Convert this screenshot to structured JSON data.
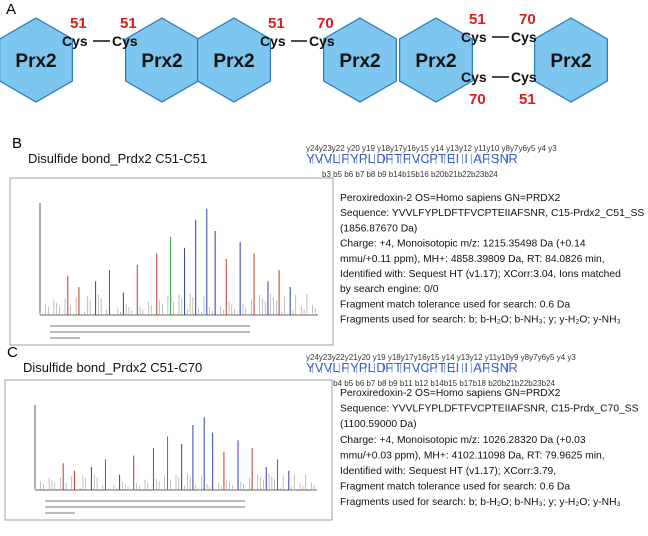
{
  "panel_a": {
    "label": "A",
    "diagrams": [
      {
        "proteins": [
          "Prx2",
          "Prx2"
        ],
        "bonds": [
          {
            "left": {
              "residue": "Cys",
              "site": 51
            },
            "right": {
              "residue": "Cys",
              "site": 51
            }
          }
        ]
      },
      {
        "proteins": [
          "Prx2",
          "Prx2"
        ],
        "bonds": [
          {
            "left": {
              "residue": "Cys",
              "site": 51
            },
            "right": {
              "residue": "Cys",
              "site": 70
            }
          }
        ]
      },
      {
        "proteins": [
          "Prx2",
          "Prx2"
        ],
        "bonds": [
          {
            "left": {
              "residue": "Cys",
              "site": 51
            },
            "right": {
              "residue": "Cys",
              "site": 70
            }
          },
          {
            "left": {
              "residue": "Cys",
              "site": 70
            },
            "right": {
              "residue": "Cys",
              "site": 51
            }
          }
        ]
      }
    ]
  },
  "panels": [
    {
      "label": "B",
      "title": "Disulfide bond_Prdx2 C51-C51",
      "sequence": [
        "Y",
        "V",
        "V",
        "L",
        "F",
        "Y",
        "P",
        "L",
        "D",
        "F",
        "T",
        "F",
        "V",
        "C",
        "P",
        "T",
        "E",
        "I",
        "I",
        "A",
        "F",
        "S",
        "N",
        "R"
      ],
      "highlight": {
        "index": 13,
        "color": "#d9772b"
      },
      "ions_top": "y24y23y22  y20 y19 y18y17y16y15 y14 y13y12 y11y10  y8y7y6y5  y4  y3",
      "ions_bottom": "b3     b5  b6  b7  b8  b9             b14b15b16        b20b21b22b23b24",
      "details": [
        "Peroxiredoxin-2 OS=Homo sapiens GN=PRDX2",
        "Sequence: YVVLFYPLDFTFVCPTEIIAFSNR, C15-Prdx2_C51_SS",
        "(1856.87670 Da)",
        "Charge: +4,   Monoisotopic m/z: 1215.35498 Da (+0.14",
        "mmu/+0.11 ppm),   MH+: 4858.39809 Da,   RT: 84.0826 min,",
        "Identified with: Sequest HT (v1.17); XCorr:3.04, Ions matched",
        "by search engine: 0/0",
        "Fragment match tolerance used for search: 0.6 Da",
        "Fragments used for search: b; b-H₂O; b-NH₃; y; y-H₂O; y-NH₃"
      ]
    },
    {
      "label": "C",
      "title": "Disulfide bond_Prdx2 C51-C70",
      "sequence": [
        "Y",
        "V",
        "V",
        "L",
        "F",
        "Y",
        "P",
        "L",
        "D",
        "F",
        "T",
        "F",
        "V",
        "C",
        "P",
        "T",
        "E",
        "I",
        "I",
        "A",
        "F",
        "S",
        "N",
        "R"
      ],
      "highlight": {
        "index": 13,
        "color": "#d9772b"
      },
      "ions_top": "y24y23y22y21y20 y19 y18y17y16y15 y14 y13y12 y11y10y9 y8y7y6y5  y4  y3",
      "ions_bottom": "b3 b4 b5 b6 b7 b8 b9     b11 b12    b14b15      b17b18      b20b21b22b23b24",
      "details": [
        "Peroxiredoxin-2 OS=Homo sapiens GN=PRDX2",
        "Sequence: YVVLFYPLDFTFVCPTEIIAFSNR, C15-Prdx_C70_SS",
        "(1100.59000 Da)",
        "Charge: +4,   Monoisotopic m/z: 1026.28320 Da (+0.03",
        "mmu/+0.03 ppm),   MH+: 4102.11098 Da,   RT: 79.9625 min,",
        "Identified with: Sequest HT (v1.17); XCorr:3.79,",
        "Fragment match tolerance used for search: 0.6 Da",
        "Fragments used for search: b; b-H₂O; b-NH₃; y; y-H₂O; y-NH₃"
      ]
    }
  ]
}
